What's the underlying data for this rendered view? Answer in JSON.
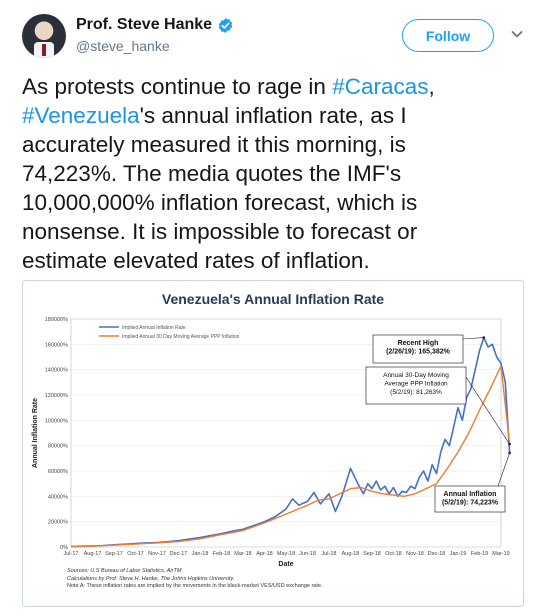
{
  "author": {
    "display_name": "Prof. Steve Hanke",
    "handle": "@steve_hanke",
    "verified": true,
    "avatar_icon": "profile-photo"
  },
  "actions": {
    "follow_label": "Follow",
    "menu_icon": "chevron-down-icon"
  },
  "tweet": {
    "lines": [
      [
        "As protests continue to rage in ",
        "#Caracas",
        ","
      ],
      [
        "#Venezuela",
        "'s annual inflation rate, as I",
        ""
      ],
      [
        "accurately measured it this morning, is",
        "",
        ""
      ],
      [
        "74,223%.  The media quotes the IMF's",
        "",
        ""
      ],
      [
        "10,000,000% inflation forecast, which is",
        "",
        ""
      ],
      [
        "nonsense. It is impossible to forecast or",
        "",
        ""
      ],
      [
        "estimate elevated rates of inflation.",
        "",
        ""
      ]
    ],
    "hashtag_color": "#1b95e0"
  },
  "chart_data": {
    "type": "line",
    "title": "Venezuela's Annual Inflation Rate",
    "xlabel": "Date",
    "ylabel": "Annual Inflation Rate",
    "ylim": [
      0,
      180000
    ],
    "y_ticks": [
      "0%",
      "20000%",
      "40000%",
      "60000%",
      "80000%",
      "100000%",
      "120000%",
      "140000%",
      "160000%",
      "180000%"
    ],
    "x_ticks": [
      "Jul-17",
      "Aug-17",
      "Sep-17",
      "Oct-17",
      "Nov-17",
      "Dec-17",
      "Jan-18",
      "Feb-18",
      "Mar-18",
      "Apr-18",
      "May-18",
      "Jun-18",
      "Jul-18",
      "Aug-18",
      "Sep-18",
      "Oct-18",
      "Nov-18",
      "Dec-18",
      "Jan-19",
      "Feb-19",
      "Mar-19"
    ],
    "legend_position": "top-left",
    "series": [
      {
        "name": "Implied Annual Inflation Rate",
        "color": "#4472c4",
        "x": [
          0,
          0.5,
          1,
          1.5,
          2,
          2.5,
          3,
          3.5,
          4,
          4.5,
          5,
          5.5,
          6,
          6.5,
          7,
          7.5,
          8,
          8.5,
          9,
          9.5,
          10,
          10.3,
          10.6,
          11,
          11.3,
          11.6,
          12,
          12.3,
          12.6,
          13,
          13.2,
          13.4,
          13.6,
          13.8,
          14,
          14.2,
          14.4,
          14.6,
          14.8,
          15,
          15.2,
          15.4,
          15.6,
          15.8,
          16,
          16.2,
          16.4,
          16.6,
          16.8,
          17,
          17.2,
          17.4,
          17.6,
          17.8,
          18,
          18.2,
          18.4,
          18.6,
          18.8,
          19,
          19.2,
          19.4,
          19.6,
          19.8,
          20,
          20.2,
          20.4
        ],
        "values": [
          300,
          600,
          900,
          1200,
          1700,
          2200,
          2800,
          3200,
          3500,
          4200,
          5000,
          6200,
          7500,
          9000,
          10500,
          12500,
          14000,
          17000,
          20000,
          24000,
          30000,
          38000,
          33000,
          36000,
          43000,
          34000,
          42000,
          28000,
          40000,
          62000,
          55000,
          48000,
          42000,
          50000,
          46000,
          52000,
          45000,
          48000,
          42000,
          47000,
          40000,
          44000,
          43000,
          48000,
          46000,
          55000,
          60000,
          52000,
          65000,
          58000,
          75000,
          85000,
          80000,
          95000,
          110000,
          100000,
          118000,
          125000,
          140000,
          155000,
          165382,
          158000,
          160000,
          150000,
          145000,
          130000,
          74223
        ]
      },
      {
        "name": "Implied Annual 30 Day Moving Average PPP Inflation",
        "color": "#ed7d31",
        "x": [
          0,
          1,
          2,
          3,
          4,
          5,
          6,
          7,
          8,
          9,
          10,
          11,
          11.5,
          12,
          12.5,
          13,
          13.5,
          14,
          14.5,
          15,
          15.5,
          16,
          16.5,
          17,
          17.5,
          18,
          18.5,
          19,
          19.5,
          20,
          20.4
        ],
        "values": [
          200,
          700,
          1400,
          2300,
          3200,
          4300,
          6500,
          9800,
          13000,
          19000,
          26000,
          33000,
          37000,
          38000,
          42000,
          46000,
          47000,
          44000,
          42000,
          41000,
          40000,
          42000,
          46000,
          50000,
          62000,
          75000,
          90000,
          108000,
          125000,
          143000,
          81263
        ]
      }
    ],
    "annotations": [
      {
        "lines": [
          "Recent High",
          "(2/26/19): 165,382%"
        ]
      },
      {
        "lines": [
          "Annual 30-Day Moving",
          "Average PPP Inflation",
          "(5/2/19): 81,263%"
        ]
      },
      {
        "lines": [
          "Annual Inflation",
          "(5/2/19): 74,223%"
        ]
      }
    ],
    "source_lines": [
      "Sources: U.S Bureau of Labor Statistics, AirTM",
      "Calculations by Prof. Steve H. Hanke, The Johns Hopkins University.",
      "Note A: These inflation rates are implied by the movements in the black-market VES/USD exchange rate."
    ]
  }
}
